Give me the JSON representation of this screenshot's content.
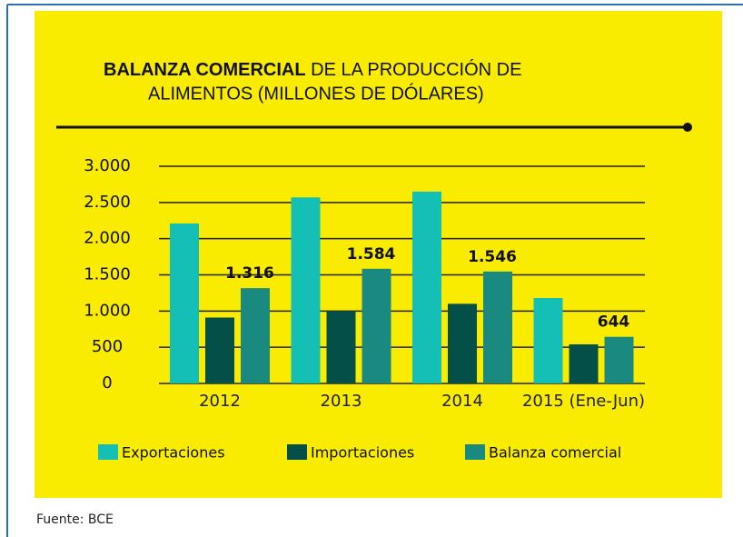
{
  "chart_data": {
    "type": "bar",
    "title_bold": "BALANZA COMERCIAL",
    "title_line1": "DE LA PRODUCCIÓN DE",
    "title_line2": "ALIMENTOS (MILLONES DE DÓLARES)",
    "source": "Fuente: BCE",
    "categories": [
      "2012",
      "2013",
      "2014",
      "2015 (Ene-Jun)"
    ],
    "series": [
      {
        "name": "Exportaciones",
        "color": "#14bfb5",
        "values": [
          2210,
          2570,
          2650,
          1180
        ]
      },
      {
        "name": "Importaciones",
        "color": "#044f47",
        "values": [
          910,
          1000,
          1100,
          540
        ]
      },
      {
        "name": "Balanza comercial",
        "color": "#1a8a80",
        "values": [
          1316,
          1584,
          1546,
          644
        ],
        "value_labels": [
          "1.316",
          "1.584",
          "1.546",
          "644"
        ]
      }
    ],
    "ylim": [
      0,
      3000
    ],
    "yticks": [
      0,
      500,
      {
        "value": 1000,
        "label": "1.000"
      },
      {
        "value": 1500,
        "label": "1.500"
      },
      {
        "value": 2000,
        "label": "2.000"
      },
      {
        "value": 2500,
        "label": "2.500"
      },
      {
        "value": 3000,
        "label": "3.000"
      }
    ],
    "grid": true,
    "background": "#f9ec00"
  }
}
